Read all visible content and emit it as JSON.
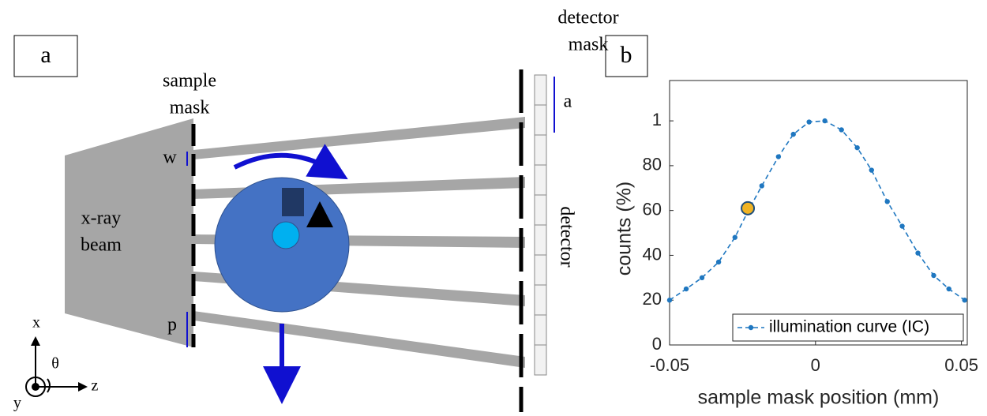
{
  "panel_a": {
    "label": "a",
    "detector_mask_label": [
      "detector",
      "mask"
    ],
    "sample_mask_label": [
      "sample",
      "mask"
    ],
    "beam_label": [
      "x-ray",
      "beam"
    ],
    "w_label": "w",
    "p_label": "p",
    "a_label": "a",
    "detector_label": "detector",
    "axes": {
      "x": "x",
      "y": "y",
      "z": "z",
      "theta": "θ"
    }
  },
  "panel_b": {
    "label": "b"
  },
  "chart_data": {
    "type": "line",
    "xlabel": "sample mask position (mm)",
    "ylabel": "counts (%)",
    "x": [
      -0.05,
      -0.0443,
      -0.0389,
      -0.0332,
      -0.0276,
      -0.023,
      -0.0184,
      -0.0127,
      -0.0076,
      -0.0022,
      0.0032,
      0.0089,
      0.0143,
      0.0192,
      0.0246,
      0.0297,
      0.0351,
      0.0405,
      0.0457,
      0.0511
    ],
    "series": [
      {
        "name": "illumination curve (IC)",
        "color": "#1f77c0",
        "values": [
          20,
          25,
          30,
          37,
          48,
          60,
          71,
          84,
          94,
          99.5,
          100,
          96,
          88,
          78,
          64,
          53,
          41,
          31,
          25,
          20
        ]
      }
    ],
    "highlight": {
      "x": -0.0232,
      "y": 61,
      "color": "#f0b323"
    },
    "xlim": [
      -0.05,
      0.052
    ],
    "ylim": [
      0,
      118
    ],
    "xticks": [
      -0.05,
      0,
      0.05
    ],
    "yticks": [
      0,
      20,
      40,
      60,
      80,
      {
        "value": 100,
        "label": "1"
      }
    ],
    "grid": false,
    "legend": "lower right"
  }
}
